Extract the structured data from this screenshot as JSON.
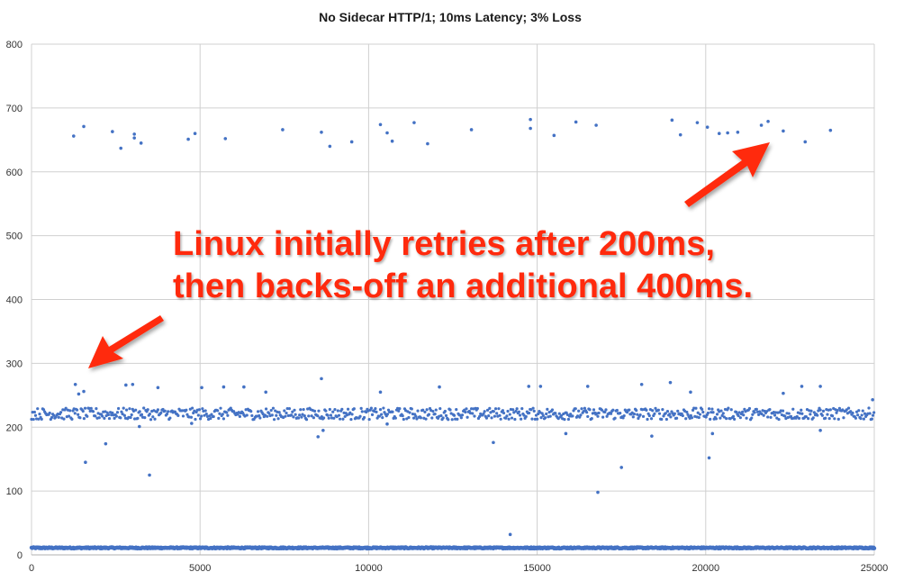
{
  "chart_data": {
    "type": "scatter",
    "title": "No Sidecar HTTP/1; 10ms Latency; 3% Loss",
    "xlabel": "",
    "ylabel": "",
    "xlim": [
      0,
      25000
    ],
    "ylim": [
      0,
      800
    ],
    "x_ticks": [
      0,
      5000,
      10000,
      15000,
      20000,
      25000
    ],
    "y_ticks": [
      0,
      100,
      200,
      300,
      400,
      500,
      600,
      700,
      800
    ],
    "grid": true,
    "legend": "none",
    "marker_color": "#4472c4",
    "series": [
      {
        "values": {
          "baseline_band": {
            "x_range": [
              0,
              25000
            ],
            "y": 11
          },
          "main_band": {
            "x_range": [
              0,
              25000
            ],
            "y_range": [
              212,
              230
            ]
          },
          "outliers": [
            [
              1250,
              656
            ],
            [
              1550,
              671
            ],
            [
              2400,
              663
            ],
            [
              2650,
              637
            ],
            [
              3050,
              659
            ],
            [
              3050,
              653
            ],
            [
              3250,
              645
            ],
            [
              4650,
              651
            ],
            [
              4850,
              660
            ],
            [
              5750,
              652
            ],
            [
              7450,
              666
            ],
            [
              8600,
              662
            ],
            [
              8850,
              640
            ],
            [
              9500,
              647
            ],
            [
              10350,
              674
            ],
            [
              10550,
              661
            ],
            [
              10700,
              648
            ],
            [
              11350,
              677
            ],
            [
              11750,
              644
            ],
            [
              13050,
              666
            ],
            [
              14800,
              682
            ],
            [
              14800,
              668
            ],
            [
              15500,
              657
            ],
            [
              16150,
              678
            ],
            [
              16750,
              673
            ],
            [
              19000,
              681
            ],
            [
              19250,
              658
            ],
            [
              19750,
              677
            ],
            [
              20050,
              670
            ],
            [
              20400,
              660
            ],
            [
              20650,
              661
            ],
            [
              20950,
              662
            ],
            [
              21650,
              673
            ],
            [
              21850,
              679
            ],
            [
              22300,
              664
            ],
            [
              22950,
              647
            ],
            [
              23700,
              665
            ],
            [
              1300,
              267
            ],
            [
              1400,
              252
            ],
            [
              1550,
              256
            ],
            [
              2800,
              266
            ],
            [
              3000,
              267
            ],
            [
              3750,
              262
            ],
            [
              5050,
              262
            ],
            [
              5700,
              263
            ],
            [
              6300,
              263
            ],
            [
              6950,
              255
            ],
            [
              8600,
              276
            ],
            [
              10350,
              255
            ],
            [
              12100,
              263
            ],
            [
              14750,
              264
            ],
            [
              15100,
              264
            ],
            [
              16500,
              264
            ],
            [
              18100,
              267
            ],
            [
              18950,
              270
            ],
            [
              19550,
              255
            ],
            [
              22300,
              253
            ],
            [
              22850,
              264
            ],
            [
              23400,
              264
            ],
            [
              24950,
              243
            ],
            [
              1600,
              145
            ],
            [
              2200,
              174
            ],
            [
              3200,
              201
            ],
            [
              3500,
              125
            ],
            [
              4750,
              206
            ],
            [
              8500,
              185
            ],
            [
              8650,
              195
            ],
            [
              10550,
              205
            ],
            [
              13700,
              176
            ],
            [
              14200,
              32
            ],
            [
              15850,
              190
            ],
            [
              16800,
              98
            ],
            [
              17500,
              137
            ],
            [
              18400,
              186
            ],
            [
              20100,
              152
            ],
            [
              20200,
              190
            ],
            [
              23400,
              195
            ]
          ]
        }
      }
    ],
    "annotation": {
      "line1": "Linux initially retries after 200ms,",
      "line2": "then backs-off an additional 400ms."
    }
  }
}
